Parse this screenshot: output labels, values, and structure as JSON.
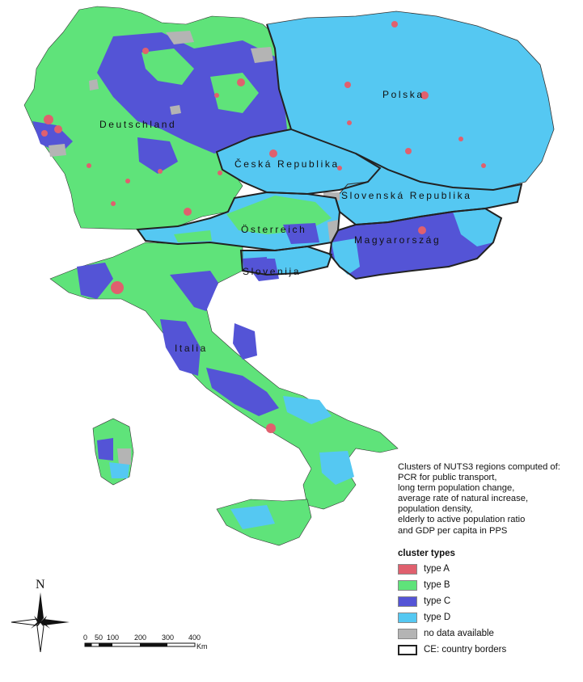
{
  "map": {
    "country_labels": [
      "Deutschland",
      "Polska",
      "Česká Republika",
      "Slovenská Republika",
      "Österreich",
      "Magyarország",
      "Slovenija",
      "Italia"
    ],
    "north_label": "N",
    "scale_ticks": [
      "0",
      "50",
      "100",
      "200",
      "300",
      "400"
    ],
    "scale_unit": "Km"
  },
  "legend": {
    "description_lines": [
      "Clusters of NUTS3 regions computed of:",
      "PCR for public transport,",
      "long term population change,",
      "average rate of natural increase,",
      "population density,",
      "elderly to active population ratio",
      "and GDP per capita in PPS"
    ],
    "title": "cluster types",
    "items": [
      {
        "label": "type A",
        "color": "#e0606e"
      },
      {
        "label": "type B",
        "color": "#5fe37a"
      },
      {
        "label": "type C",
        "color": "#5454d6"
      },
      {
        "label": "type D",
        "color": "#55c8f2"
      },
      {
        "label": "no data available",
        "color": "#b4b4b4"
      },
      {
        "label": "CE: country borders",
        "color": "#ffffff"
      }
    ]
  }
}
